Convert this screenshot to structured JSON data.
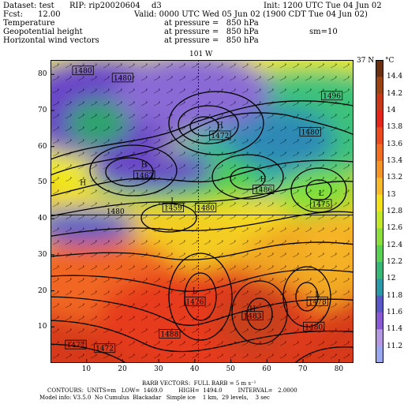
{
  "header": {
    "dataset": "Dataset: test",
    "rip": "RIP: rip20020604",
    "domain_id": "d3",
    "init": "Init: 1200 UTC Tue 04 Jun 02",
    "fcst_label": "Fcst:",
    "fcst_value": "12.00",
    "valid": "Valid: 0000 UTC Wed 05 Jun 02 (1900 CDT Tue 04 Jun 02)",
    "fields": [
      {
        "name": "Temperature",
        "level": "at pressure =   850 hPa"
      },
      {
        "name": "Geopotential height",
        "level": "at pressure =   850 hPa"
      },
      {
        "name": "Horizontal wind vectors",
        "level": "at pressure =   850 hPa"
      }
    ],
    "smoothing": "sm=10"
  },
  "map": {
    "top_label": "101 W",
    "right_label": "37 N",
    "x_ticks": [
      10,
      20,
      30,
      40,
      50,
      60,
      70,
      80
    ],
    "y_ticks": [
      10,
      20,
      30,
      40,
      50,
      60,
      70,
      80
    ],
    "grid_max": 84,
    "crosshair": {
      "x": 41,
      "y": 41
    },
    "height_labels": [
      {
        "text": "1480",
        "x": 9,
        "y": 81,
        "boxed": true
      },
      {
        "text": "1480",
        "x": 20,
        "y": 79,
        "boxed": true
      },
      {
        "text": "H",
        "x": 9,
        "y": 50,
        "boxed": false
      },
      {
        "text": "1496",
        "x": 78,
        "y": 74,
        "boxed": true
      },
      {
        "text": "H",
        "x": 47,
        "y": 66,
        "boxed": false
      },
      {
        "text": "1472",
        "x": 47,
        "y": 63,
        "boxed": true
      },
      {
        "text": "1480",
        "x": 72,
        "y": 64,
        "boxed": true
      },
      {
        "text": "H",
        "x": 26,
        "y": 55,
        "boxed": false
      },
      {
        "text": "1462",
        "x": 26,
        "y": 52,
        "boxed": true
      },
      {
        "text": "H",
        "x": 59,
        "y": 51,
        "boxed": false
      },
      {
        "text": "1486",
        "x": 59,
        "y": 48,
        "boxed": true
      },
      {
        "text": "L",
        "x": 34,
        "y": 45,
        "boxed": false
      },
      {
        "text": "1459",
        "x": 34,
        "y": 43,
        "boxed": true
      },
      {
        "text": "1480",
        "x": 43,
        "y": 43,
        "boxed": true
      },
      {
        "text": "1480",
        "x": 18,
        "y": 42,
        "boxed": false
      },
      {
        "text": "L",
        "x": 75,
        "y": 47,
        "boxed": false
      },
      {
        "text": "1475",
        "x": 75,
        "y": 44,
        "boxed": true
      },
      {
        "text": "L",
        "x": 40,
        "y": 20,
        "boxed": false
      },
      {
        "text": "1476",
        "x": 40,
        "y": 17,
        "boxed": true
      },
      {
        "text": "H",
        "x": 56,
        "y": 15,
        "boxed": false
      },
      {
        "text": "1483",
        "x": 56,
        "y": 13,
        "boxed": true
      },
      {
        "text": "L",
        "x": 74,
        "y": 19,
        "boxed": false
      },
      {
        "text": "1478",
        "x": 74,
        "y": 17,
        "boxed": true
      },
      {
        "text": "1480",
        "x": 73,
        "y": 10,
        "boxed": true
      },
      {
        "text": "1488",
        "x": 33,
        "y": 8,
        "boxed": true
      },
      {
        "text": "1472",
        "x": 7,
        "y": 5,
        "boxed": true
      },
      {
        "text": "1472",
        "x": 15,
        "y": 4,
        "boxed": true
      }
    ],
    "colors": {
      "cold": "#5e2dbd",
      "mid_green": "#4bd64b",
      "warm_yellow": "#f2e51a",
      "hot_red": "#e8261a",
      "contour": "#000000"
    }
  },
  "colorbar": {
    "unit": "°C",
    "labels": [
      "14.4",
      "14.2",
      "14",
      "13.8",
      "13.6",
      "13.4",
      "13.2",
      "13",
      "12.8",
      "12.6",
      "12.4",
      "12.2",
      "12",
      "11.8",
      "11.6",
      "11.4",
      "11.2"
    ],
    "colors": [
      "#6b3010",
      "#9a4414",
      "#c8381a",
      "#e2261c",
      "#ea4a1e",
      "#ef6e22",
      "#f49426",
      "#f7ba28",
      "#f2e01a",
      "#c2e628",
      "#8cde3a",
      "#5ad052",
      "#38b878",
      "#2a9aa8",
      "#5a58c6",
      "#8a5ad2",
      "#b498e2",
      "#9aa8f0"
    ]
  },
  "footer": {
    "barb_line": "BARB VECTORS:  FULL BARB = 5 m s⁻¹",
    "contours_line": "CONTOURS:  UNITS=m   LOW=  1469.0         HIGH=  1494.0         INTERVAL=   2.0000",
    "model_line": "Model info: V3.5.0  No Cumulus  Blackadar   Simple ice    1 km,  29 levels,    3 sec"
  }
}
